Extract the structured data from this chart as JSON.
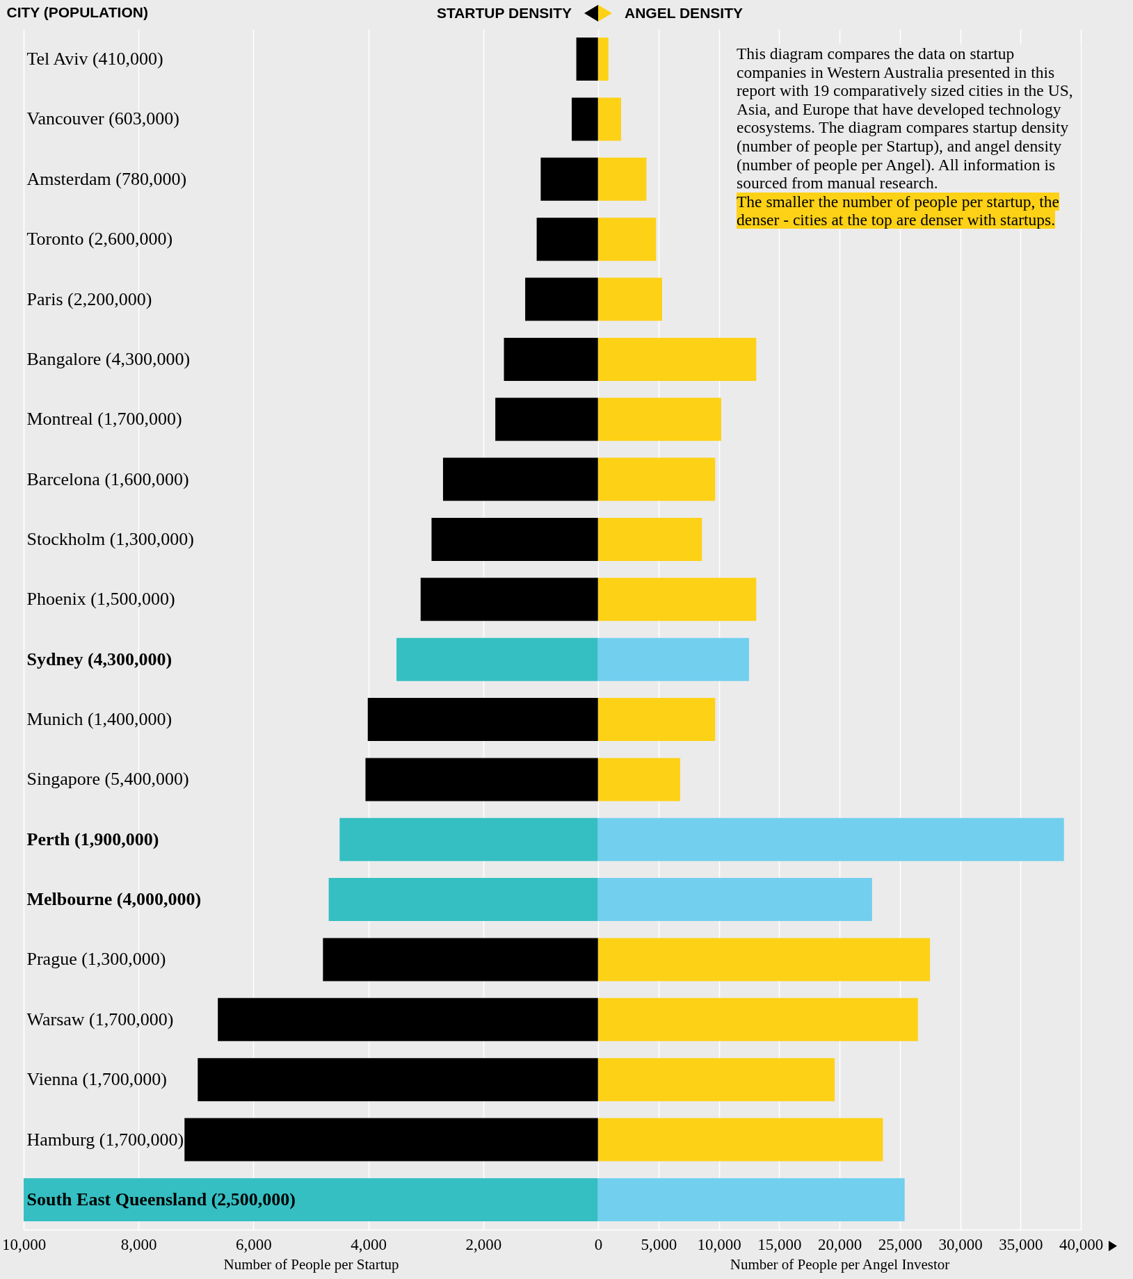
{
  "chart_data": [
    {
      "type": "bar",
      "orientation": "horizontal",
      "ylabel": "CITY (POPULATION)",
      "xlabel": "Number of People per Startup",
      "categories": [
        "Tel Aviv (410,000)",
        "Vancouver (603,000)",
        "Amsterdam (780,000)",
        "Toronto (2,600,000)",
        "Paris (2,200,000)",
        "Bangalore (4,300,000)",
        "Montreal (1,700,000)",
        "Barcelona (1,600,000)",
        "Stockholm (1,300,000)",
        "Phoenix (1,500,000)",
        "Sydney (4,300,000)",
        "Munich (1,400,000)",
        "Singapore (5,400,000)",
        "Perth (1,900,000)",
        "Melbourne (4,000,000)",
        "Prague (1,300,000)",
        "Warsaw (1,700,000)",
        "Vienna (1,700,000)",
        "Hamburg (1,700,000)",
        "South East Queensland (2,500,000)"
      ],
      "series": [
        {
          "name": "STARTUP DENSITY",
          "color": "#000000",
          "colors": [
            "#000000",
            "#000000",
            "#000000",
            "#000000",
            "#000000",
            "#000000",
            "#000000",
            "#000000",
            "#000000",
            "#000000",
            "#35bfc2",
            "#000000",
            "#000000",
            "#35bfc2",
            "#35bfc2",
            "#000000",
            "#000000",
            "#000000",
            "#000000",
            "#35bfc2"
          ],
          "values": [
            380,
            460,
            1000,
            1070,
            1270,
            1640,
            1790,
            2700,
            2900,
            3090,
            3510,
            4010,
            4050,
            4500,
            4690,
            4790,
            6620,
            6970,
            7200,
            10000
          ]
        }
      ],
      "xlim": [
        10000,
        0
      ],
      "xticks": [
        {
          "value": 10000,
          "label": "10,000"
        },
        {
          "value": 8000,
          "label": "8,000"
        },
        {
          "value": 6000,
          "label": "6,000"
        },
        {
          "value": 4000,
          "label": "4,000"
        },
        {
          "value": 2000,
          "label": "2,000"
        }
      ],
      "grid": "x",
      "legend": "top right"
    },
    {
      "type": "bar",
      "orientation": "horizontal",
      "xlabel": "Number of People per Angel Investor",
      "categories": [
        "Tel Aviv (410,000)",
        "Vancouver (603,000)",
        "Amsterdam (780,000)",
        "Toronto (2,600,000)",
        "Paris (2,200,000)",
        "Bangalore (4,300,000)",
        "Montreal (1,700,000)",
        "Barcelona (1,600,000)",
        "Stockholm (1,300,000)",
        "Phoenix (1,500,000)",
        "Sydney (4,300,000)",
        "Munich (1,400,000)",
        "Singapore (5,400,000)",
        "Perth (1,900,000)",
        "Melbourne (4,000,000)",
        "Prague (1,300,000)",
        "Warsaw (1,700,000)",
        "Vienna (1,700,000)",
        "Hamburg (1,700,000)",
        "South East Queensland (2,500,000)"
      ],
      "series": [
        {
          "name": "ANGEL DENSITY",
          "color": "#fdd116",
          "colors": [
            "#fdd116",
            "#fdd116",
            "#fdd116",
            "#fdd116",
            "#fdd116",
            "#fdd116",
            "#fdd116",
            "#fdd116",
            "#fdd116",
            "#fdd116",
            "#72cfee",
            "#fdd116",
            "#fdd116",
            "#72cfee",
            "#72cfee",
            "#fdd116",
            "#fdd116",
            "#fdd116",
            "#fdd116",
            "#72cfee"
          ],
          "values": [
            850,
            1900,
            4000,
            4800,
            5300,
            13100,
            10200,
            9700,
            8600,
            13100,
            12500,
            9700,
            6800,
            38600,
            22700,
            27500,
            26500,
            19600,
            23600,
            25400
          ]
        }
      ],
      "xlim": [
        0,
        40000
      ],
      "xticks": [
        0,
        {
          "value": 5000,
          "label": "5,000"
        },
        {
          "value": 10000,
          "label": "10,000"
        },
        {
          "value": 15000,
          "label": "15,000"
        },
        {
          "value": 20000,
          "label": "20,000"
        },
        {
          "value": 25000,
          "label": "25,000"
        },
        {
          "value": 30000,
          "label": "30,000"
        },
        {
          "value": 35000,
          "label": "35,000"
        },
        {
          "value": 40000,
          "label": "40,000"
        }
      ],
      "grid": "x",
      "legend": "top left",
      "tick_labels": "x",
      "annotations": [
        "This diagram compares the data on startup companies in Western Australia presented in this report with 19 comparatively sized cities in the US, Asia, and Europe that have developed technology ecosystems. The diagram compares startup density (number of people per Startup), and angel density (number of people per Angel). All information is sourced from manual research.",
        "The smaller the number of people per startup, the denser - cities at the top are denser with startups."
      ]
    }
  ]
}
